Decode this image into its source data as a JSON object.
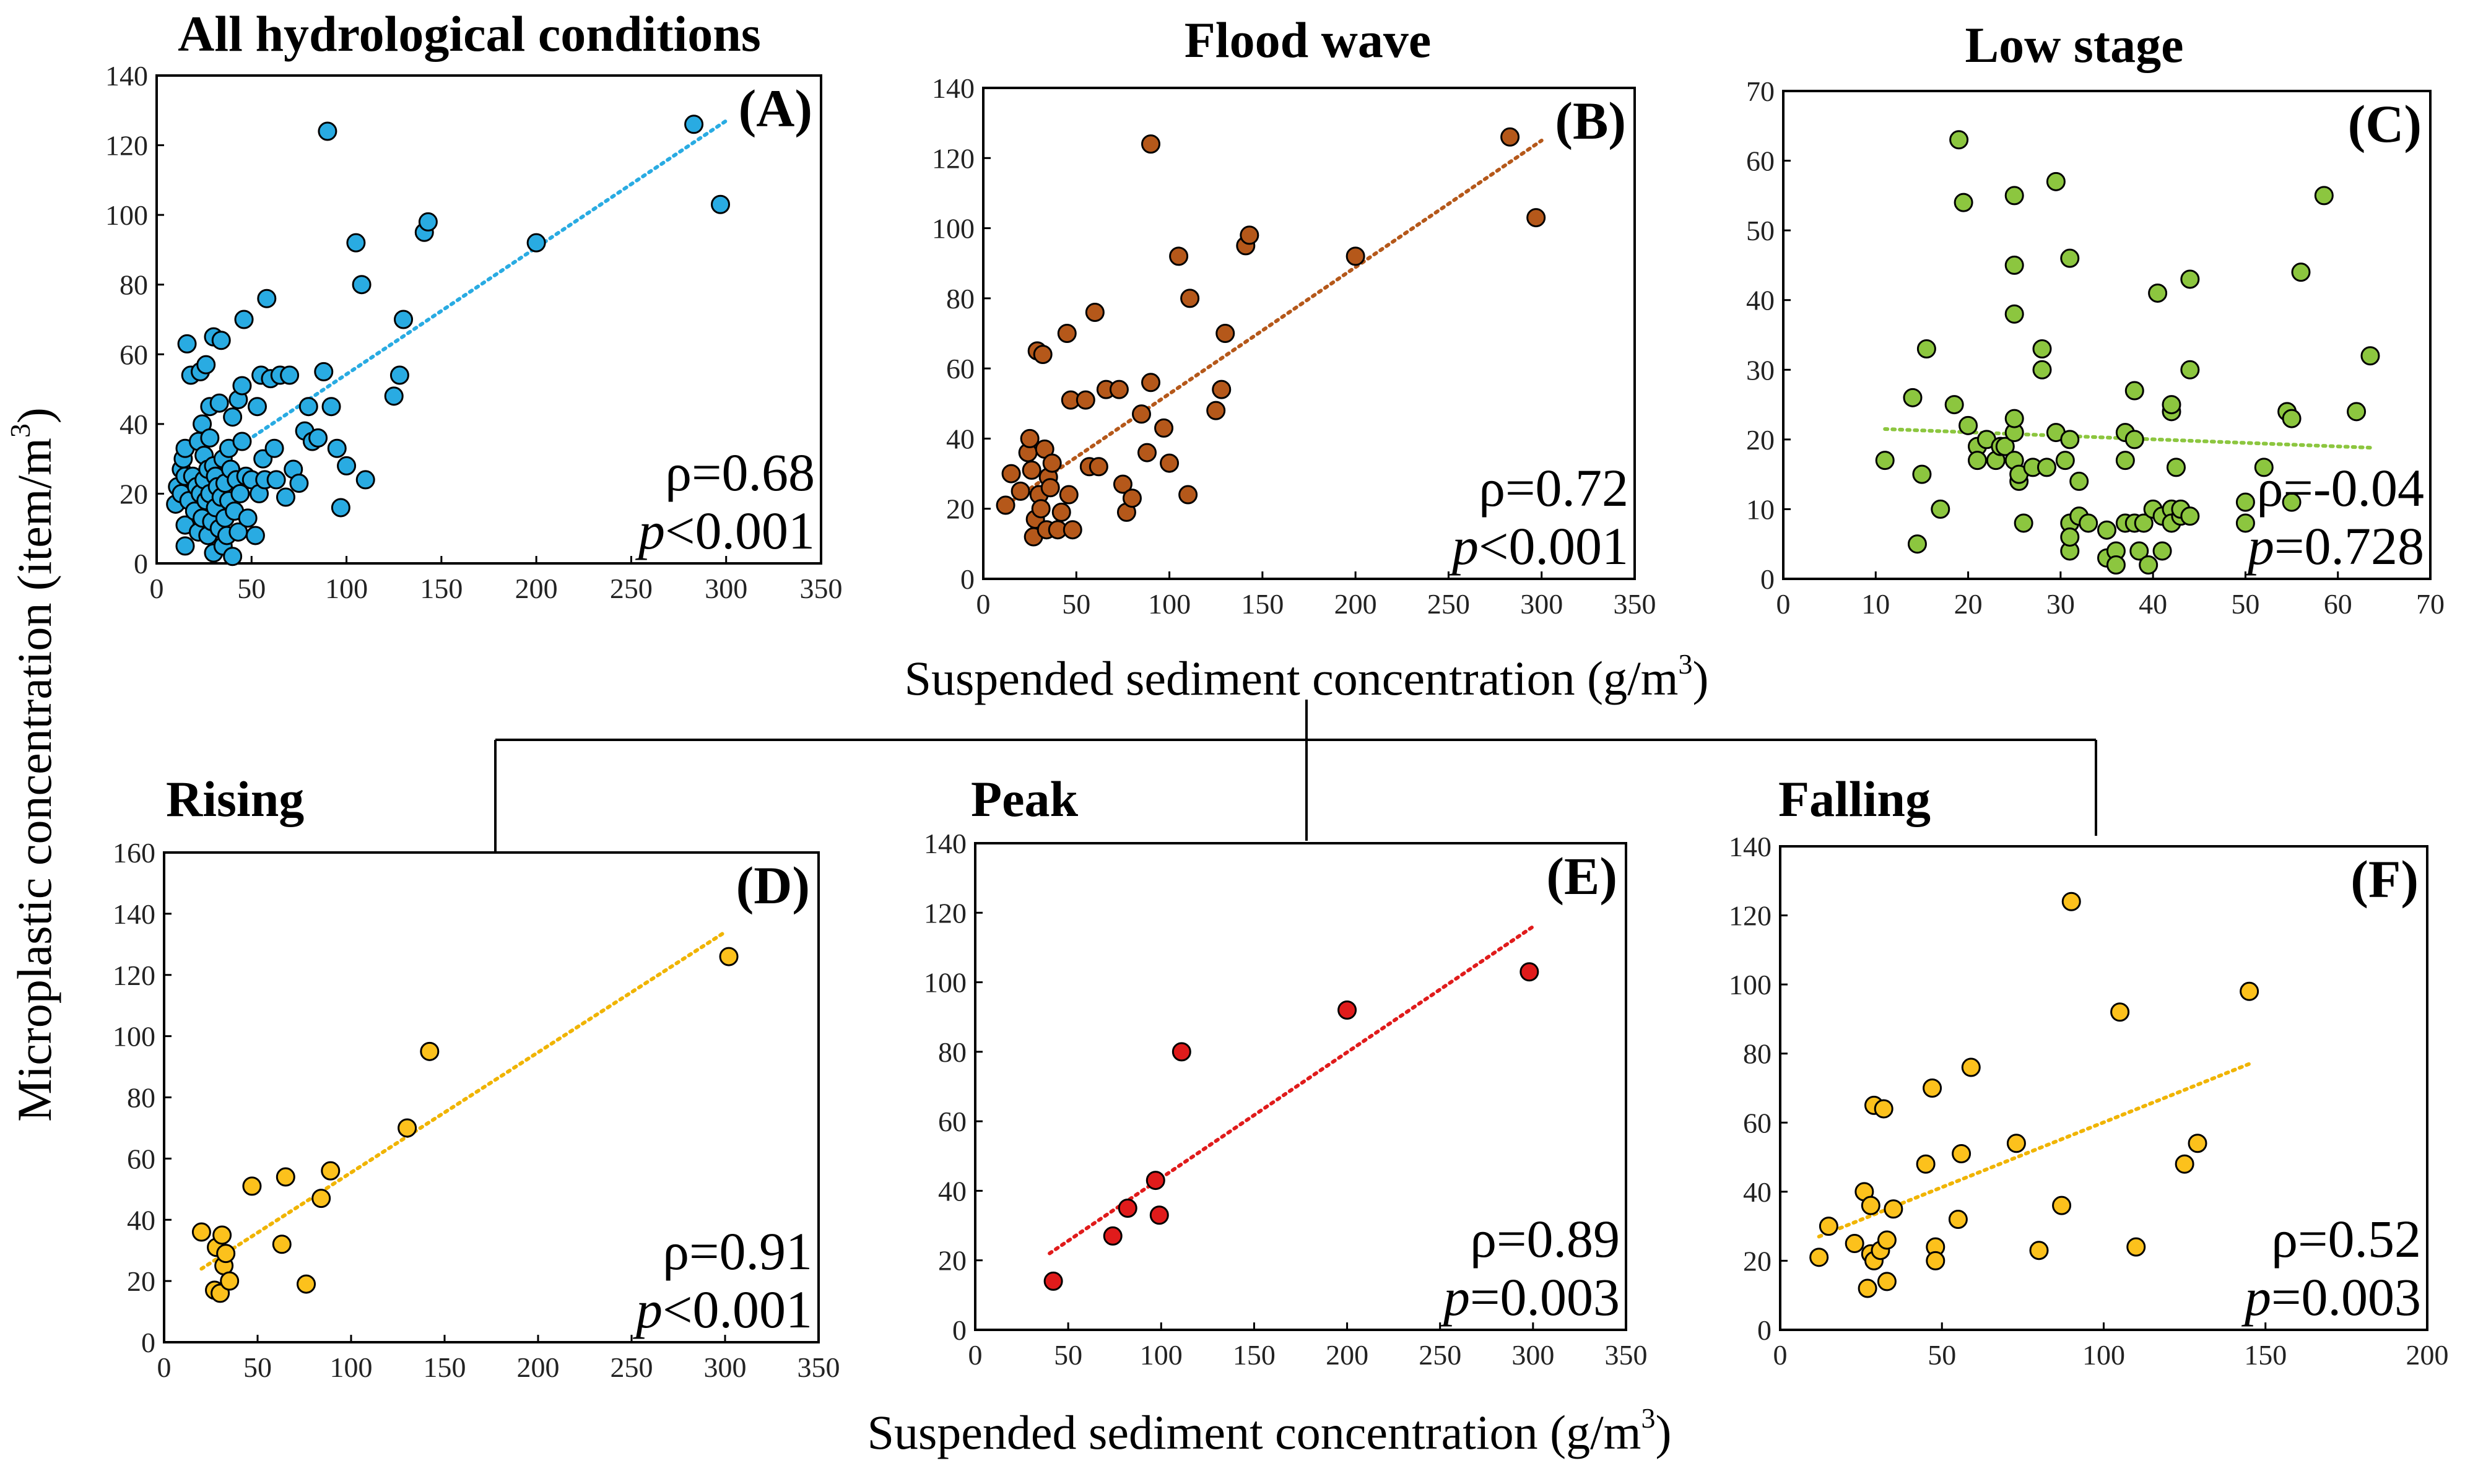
{
  "figure": {
    "xlabel_top": "Suspended sediment concentration (g/m",
    "xlabel_bottom": "Suspended sediment concentration (g/m",
    "xlabel_sup": "3",
    "xlabel_close": ")",
    "ylabel": "Microplastic concentration (item/m",
    "ylabel_sup": "3",
    "ylabel_close": ")",
    "rho_symbol": "ρ",
    "p_symbol": "p"
  },
  "chart_data": [
    {
      "id": "A",
      "label": "(A)",
      "title": "All hydrological conditions",
      "type": "scatter",
      "xlim": [
        0,
        350
      ],
      "ylim": [
        0,
        140
      ],
      "xticks": [
        0,
        50,
        100,
        150,
        200,
        250,
        300,
        350
      ],
      "yticks": [
        0,
        20,
        40,
        60,
        80,
        100,
        120,
        140
      ],
      "color": "#29abe2",
      "trend_color": "#29abe2",
      "trend": {
        "x": [
          25,
          300
        ],
        "y": [
          27,
          127
        ]
      },
      "rho": "=0.68",
      "p": "<0.001",
      "points": [
        [
          10,
          17
        ],
        [
          11,
          22
        ],
        [
          13,
          27
        ],
        [
          13,
          20
        ],
        [
          14,
          30
        ],
        [
          15,
          25
        ],
        [
          15,
          11
        ],
        [
          15,
          33
        ],
        [
          15,
          5
        ],
        [
          16,
          63
        ],
        [
          17,
          18
        ],
        [
          18,
          54
        ],
        [
          19,
          25
        ],
        [
          20,
          15
        ],
        [
          21,
          22
        ],
        [
          22,
          35
        ],
        [
          22,
          9
        ],
        [
          23,
          55
        ],
        [
          23,
          20
        ],
        [
          24,
          40
        ],
        [
          24,
          13
        ],
        [
          25,
          31
        ],
        [
          25,
          24
        ],
        [
          26,
          57
        ],
        [
          26,
          18
        ],
        [
          27,
          27
        ],
        [
          27,
          8
        ],
        [
          28,
          45
        ],
        [
          28,
          36
        ],
        [
          28,
          20
        ],
        [
          29,
          12
        ],
        [
          30,
          65
        ],
        [
          30,
          3
        ],
        [
          30,
          28
        ],
        [
          31,
          25
        ],
        [
          31,
          16
        ],
        [
          32,
          22
        ],
        [
          33,
          46
        ],
        [
          33,
          10
        ],
        [
          34,
          64
        ],
        [
          34,
          19
        ],
        [
          35,
          30
        ],
        [
          35,
          5
        ],
        [
          36,
          23
        ],
        [
          36,
          13
        ],
        [
          37,
          8
        ],
        [
          38,
          33
        ],
        [
          38,
          18
        ],
        [
          39,
          27
        ],
        [
          40,
          2
        ],
        [
          40,
          42
        ],
        [
          41,
          15
        ],
        [
          42,
          24
        ],
        [
          43,
          47
        ],
        [
          43,
          9
        ],
        [
          44,
          20
        ],
        [
          45,
          51
        ],
        [
          45,
          35
        ],
        [
          46,
          70
        ],
        [
          47,
          25
        ],
        [
          48,
          13
        ],
        [
          50,
          24
        ],
        [
          52,
          8
        ],
        [
          53,
          45
        ],
        [
          54,
          20
        ],
        [
          55,
          54
        ],
        [
          56,
          30
        ],
        [
          57,
          24
        ],
        [
          58,
          76
        ],
        [
          60,
          53
        ],
        [
          62,
          33
        ],
        [
          63,
          24
        ],
        [
          65,
          54
        ],
        [
          68,
          19
        ],
        [
          70,
          54
        ],
        [
          72,
          27
        ],
        [
          75,
          23
        ],
        [
          78,
          38
        ],
        [
          80,
          45
        ],
        [
          82,
          35
        ],
        [
          85,
          36
        ],
        [
          88,
          55
        ],
        [
          90,
          124
        ],
        [
          92,
          45
        ],
        [
          95,
          33
        ],
        [
          97,
          16
        ],
        [
          100,
          28
        ],
        [
          105,
          92
        ],
        [
          108,
          80
        ],
        [
          110,
          24
        ],
        [
          125,
          48
        ],
        [
          128,
          54
        ],
        [
          130,
          70
        ],
        [
          141,
          95
        ],
        [
          143,
          98
        ],
        [
          200,
          92
        ],
        [
          283,
          126
        ],
        [
          297,
          103
        ]
      ]
    },
    {
      "id": "B",
      "label": "(B)",
      "title": "Flood wave",
      "type": "scatter",
      "xlim": [
        0,
        350
      ],
      "ylim": [
        0,
        140
      ],
      "xticks": [
        0,
        50,
        100,
        150,
        200,
        250,
        300,
        350
      ],
      "yticks": [
        0,
        20,
        40,
        60,
        80,
        100,
        120,
        140
      ],
      "color": "#b5581a",
      "trend_color": "#b5581a",
      "trend": {
        "x": [
          12,
          300
        ],
        "y": [
          21,
          125
        ]
      },
      "rho": "=0.72",
      "p": "<0.001",
      "points": [
        [
          12,
          21
        ],
        [
          15,
          30
        ],
        [
          20,
          25
        ],
        [
          24,
          36
        ],
        [
          25,
          40
        ],
        [
          26,
          31
        ],
        [
          27,
          12
        ],
        [
          28,
          17
        ],
        [
          29,
          65
        ],
        [
          30,
          24
        ],
        [
          31,
          20
        ],
        [
          32,
          64
        ],
        [
          33,
          37
        ],
        [
          34,
          14
        ],
        [
          35,
          29
        ],
        [
          36,
          26
        ],
        [
          37,
          33
        ],
        [
          40,
          14
        ],
        [
          42,
          19
        ],
        [
          45,
          70
        ],
        [
          46,
          24
        ],
        [
          47,
          51
        ],
        [
          48,
          14
        ],
        [
          55,
          51
        ],
        [
          57,
          32
        ],
        [
          60,
          76
        ],
        [
          62,
          32
        ],
        [
          66,
          54
        ],
        [
          73,
          54
        ],
        [
          75,
          27
        ],
        [
          77,
          19
        ],
        [
          80,
          23
        ],
        [
          85,
          47
        ],
        [
          88,
          36
        ],
        [
          90,
          124
        ],
        [
          90,
          56
        ],
        [
          97,
          43
        ],
        [
          100,
          33
        ],
        [
          105,
          92
        ],
        [
          110,
          24
        ],
        [
          111,
          80
        ],
        [
          125,
          48
        ],
        [
          128,
          54
        ],
        [
          130,
          70
        ],
        [
          141,
          95
        ],
        [
          143,
          98
        ],
        [
          200,
          92
        ],
        [
          283,
          126
        ],
        [
          297,
          103
        ]
      ]
    },
    {
      "id": "C",
      "label": "(C)",
      "title": "Low stage",
      "type": "scatter",
      "xlim": [
        0,
        70
      ],
      "ylim": [
        0,
        70
      ],
      "xticks": [
        0,
        10,
        20,
        30,
        40,
        50,
        60,
        70
      ],
      "yticks": [
        0,
        10,
        20,
        30,
        40,
        50,
        60,
        70
      ],
      "color": "#8cc63f",
      "trend_color": "#8cc63f",
      "trend": {
        "x": [
          11,
          64
        ],
        "y": [
          21.5,
          18.8
        ]
      },
      "rho": "=-0.04",
      "p": "=0.728",
      "points": [
        [
          11,
          17
        ],
        [
          14,
          26
        ],
        [
          14.5,
          5
        ],
        [
          15,
          15
        ],
        [
          15.5,
          33
        ],
        [
          17,
          10
        ],
        [
          18.5,
          25
        ],
        [
          19,
          63
        ],
        [
          19.5,
          54
        ],
        [
          20,
          22
        ],
        [
          21,
          19
        ],
        [
          21,
          17
        ],
        [
          22,
          20
        ],
        [
          23,
          17
        ],
        [
          23.5,
          19
        ],
        [
          24,
          19
        ],
        [
          25,
          45
        ],
        [
          25,
          38
        ],
        [
          25,
          55
        ],
        [
          25,
          21
        ],
        [
          25,
          23
        ],
        [
          25,
          17
        ],
        [
          25.5,
          14
        ],
        [
          25.5,
          15
        ],
        [
          26,
          8
        ],
        [
          27,
          16
        ],
        [
          28,
          33
        ],
        [
          28,
          30
        ],
        [
          28.5,
          16
        ],
        [
          29.5,
          21
        ],
        [
          29.5,
          57
        ],
        [
          30.5,
          17
        ],
        [
          31,
          46
        ],
        [
          31,
          20
        ],
        [
          31,
          8
        ],
        [
          31,
          4
        ],
        [
          31,
          6
        ],
        [
          32,
          14
        ],
        [
          32,
          9
        ],
        [
          33,
          8
        ],
        [
          35,
          7
        ],
        [
          35,
          3
        ],
        [
          36,
          4
        ],
        [
          36,
          2
        ],
        [
          37,
          21
        ],
        [
          37,
          17
        ],
        [
          37,
          8
        ],
        [
          38,
          20
        ],
        [
          38,
          27
        ],
        [
          38,
          8
        ],
        [
          38.5,
          4
        ],
        [
          39,
          8
        ],
        [
          39.5,
          2
        ],
        [
          40,
          10
        ],
        [
          40.5,
          41
        ],
        [
          41,
          9
        ],
        [
          41,
          4
        ],
        [
          42,
          24
        ],
        [
          42,
          10
        ],
        [
          42,
          8
        ],
        [
          42,
          25
        ],
        [
          42.5,
          16
        ],
        [
          43,
          9
        ],
        [
          43,
          10
        ],
        [
          44,
          43
        ],
        [
          44,
          30
        ],
        [
          44,
          9
        ],
        [
          50,
          8
        ],
        [
          50,
          11
        ],
        [
          52,
          16
        ],
        [
          54.5,
          24
        ],
        [
          55,
          11
        ],
        [
          55,
          23
        ],
        [
          56,
          44
        ],
        [
          58.5,
          55
        ],
        [
          62,
          24
        ],
        [
          63.5,
          32
        ]
      ]
    },
    {
      "id": "D",
      "label": "(D)",
      "title": "Rising",
      "type": "scatter",
      "xlim": [
        0,
        350
      ],
      "ylim": [
        0,
        160
      ],
      "xticks": [
        0,
        50,
        100,
        150,
        200,
        250,
        300,
        350
      ],
      "yticks": [
        0,
        20,
        40,
        60,
        80,
        100,
        120,
        140,
        160
      ],
      "color": "#fcc11c",
      "trend_color": "#f0b400",
      "trend": {
        "x": [
          20,
          300
        ],
        "y": [
          24,
          134
        ]
      },
      "rho": "=0.91",
      "p": "<0.001",
      "points": [
        [
          20,
          36
        ],
        [
          27,
          17
        ],
        [
          28,
          31
        ],
        [
          30,
          16
        ],
        [
          31,
          35
        ],
        [
          32,
          25
        ],
        [
          33,
          29
        ],
        [
          35,
          20
        ],
        [
          47,
          51
        ],
        [
          63,
          32
        ],
        [
          65,
          54
        ],
        [
          76,
          19
        ],
        [
          84,
          47
        ],
        [
          89,
          56
        ],
        [
          130,
          70
        ],
        [
          142,
          95
        ],
        [
          302,
          126
        ]
      ]
    },
    {
      "id": "E",
      "label": "(E)",
      "title": "Peak",
      "type": "scatter",
      "xlim": [
        0,
        350
      ],
      "ylim": [
        0,
        140
      ],
      "xticks": [
        0,
        50,
        100,
        150,
        200,
        250,
        300,
        350
      ],
      "yticks": [
        0,
        20,
        40,
        60,
        80,
        100,
        120,
        140
      ],
      "color": "#e01b1b",
      "trend_color": "#e01b1b",
      "trend": {
        "x": [
          40,
          300
        ],
        "y": [
          22,
          116
        ]
      },
      "rho": "=0.89",
      "p": "=0.003",
      "points": [
        [
          42,
          14
        ],
        [
          74,
          27
        ],
        [
          82,
          35
        ],
        [
          97,
          43
        ],
        [
          99,
          33
        ],
        [
          111,
          80
        ],
        [
          200,
          92
        ],
        [
          298,
          103
        ]
      ]
    },
    {
      "id": "F",
      "label": "(F)",
      "title": "Falling",
      "type": "scatter",
      "xlim": [
        0,
        200
      ],
      "ylim": [
        0,
        140
      ],
      "xticks": [
        0,
        50,
        100,
        150,
        200
      ],
      "yticks": [
        0,
        20,
        40,
        60,
        80,
        100,
        120,
        140
      ],
      "color": "#fcc11c",
      "trend_color": "#f0b400",
      "trend": {
        "x": [
          12,
          145
        ],
        "y": [
          27,
          77
        ]
      },
      "rho": "=0.52",
      "p": "=0.003",
      "points": [
        [
          12,
          21
        ],
        [
          15,
          30
        ],
        [
          23,
          25
        ],
        [
          26,
          40
        ],
        [
          27,
          12
        ],
        [
          28,
          22
        ],
        [
          28,
          36
        ],
        [
          29,
          20
        ],
        [
          29,
          65
        ],
        [
          31,
          23
        ],
        [
          32,
          64
        ],
        [
          33,
          26
        ],
        [
          33,
          14
        ],
        [
          35,
          35
        ],
        [
          45,
          48
        ],
        [
          47,
          70
        ],
        [
          48,
          24
        ],
        [
          48,
          20
        ],
        [
          55,
          32
        ],
        [
          56,
          51
        ],
        [
          59,
          76
        ],
        [
          73,
          54
        ],
        [
          80,
          23
        ],
        [
          87,
          36
        ],
        [
          90,
          124
        ],
        [
          105,
          92
        ],
        [
          110,
          24
        ],
        [
          125,
          48
        ],
        [
          129,
          54
        ],
        [
          145,
          98
        ]
      ]
    }
  ]
}
